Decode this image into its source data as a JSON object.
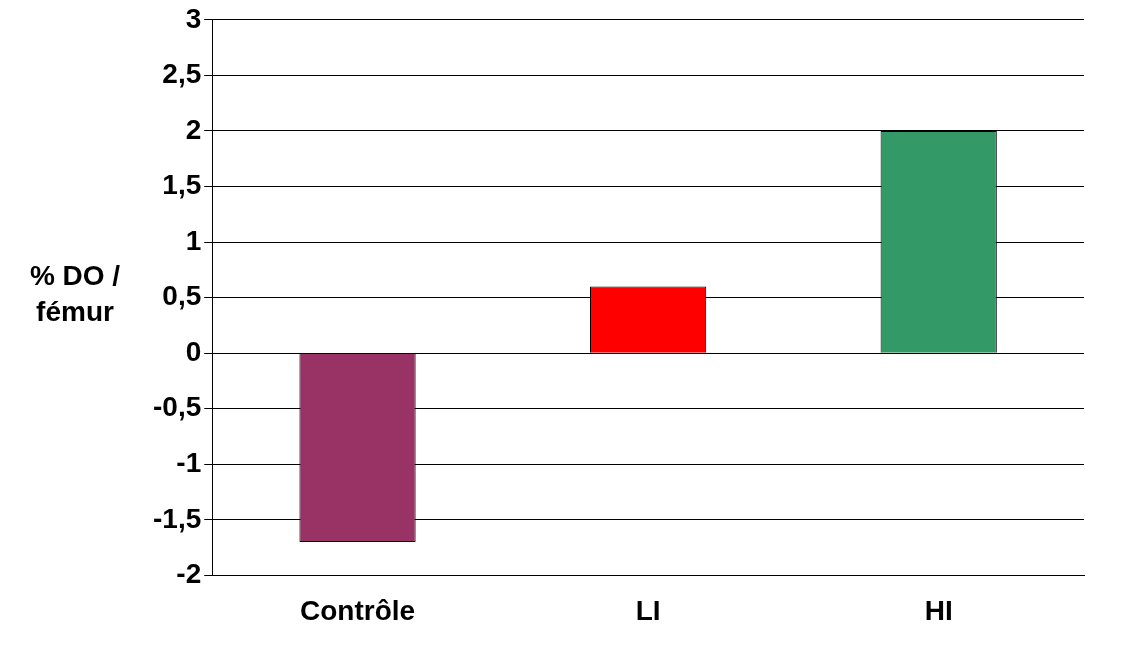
{
  "chart_data": {
    "type": "bar",
    "ylabel": "% DO / fémur",
    "categories": [
      "Contrôle",
      "LI",
      "HI"
    ],
    "values": [
      -1.7,
      0.6,
      2.0
    ],
    "colors": [
      "#993366",
      "#ff0000",
      "#339966"
    ],
    "ylim": [
      -2,
      3
    ],
    "yticks": [
      -2,
      {
        "value": -1.5,
        "label": "-1,5"
      },
      -1,
      {
        "value": -0.5,
        "label": "-0,5"
      },
      0,
      {
        "value": 0.5,
        "label": "0,5"
      },
      1,
      {
        "value": 1.5,
        "label": "1,5"
      },
      2,
      {
        "value": 2.5,
        "label": "2,5"
      },
      3
    ],
    "grid": "y",
    "legend": false
  }
}
